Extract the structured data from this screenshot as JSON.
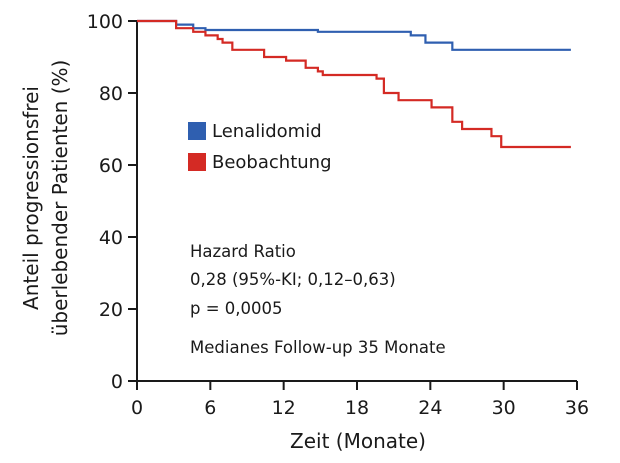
{
  "chart_data": {
    "type": "line",
    "step": true,
    "xlabel": "Zeit (Monate)",
    "ylabel_lines": [
      "Anteil progressionsfrei",
      "überlebender Patienten (%)"
    ],
    "xlim": [
      0,
      36
    ],
    "ylim": [
      0,
      100
    ],
    "xticks": [
      0,
      6,
      12,
      18,
      24,
      30,
      36
    ],
    "yticks": [
      0,
      20,
      40,
      60,
      80,
      100
    ],
    "grid": false,
    "legend_position": "middle-left",
    "series": [
      {
        "name": "Lenalidomid",
        "color": "#2f5fb0",
        "x": [
          0,
          3.2,
          4.6,
          5.6,
          14.8,
          22.4,
          23.6,
          25.8,
          35.5
        ],
        "y": [
          100,
          99,
          98,
          97.5,
          97,
          96,
          94,
          92,
          92
        ]
      },
      {
        "name": "Beobachtung",
        "color": "#d42a24",
        "x": [
          0,
          3.2,
          4.6,
          5.6,
          6.6,
          7.0,
          7.8,
          10.4,
          12.2,
          13.8,
          14.8,
          15.2,
          19.6,
          20.2,
          21.4,
          24.1,
          25.8,
          26.6,
          29.0,
          29.8,
          35.5
        ],
        "y": [
          100,
          98,
          97,
          96,
          95,
          94,
          92,
          90,
          89,
          87,
          86,
          85,
          84,
          80,
          78,
          76,
          72,
          70,
          68,
          65,
          65
        ]
      }
    ],
    "annotations": [
      "Hazard Ratio",
      "0,28 (95%-KI; 0,12–0,63)",
      "p = 0,0005",
      "Medianes Follow-up 35 Monate"
    ]
  }
}
